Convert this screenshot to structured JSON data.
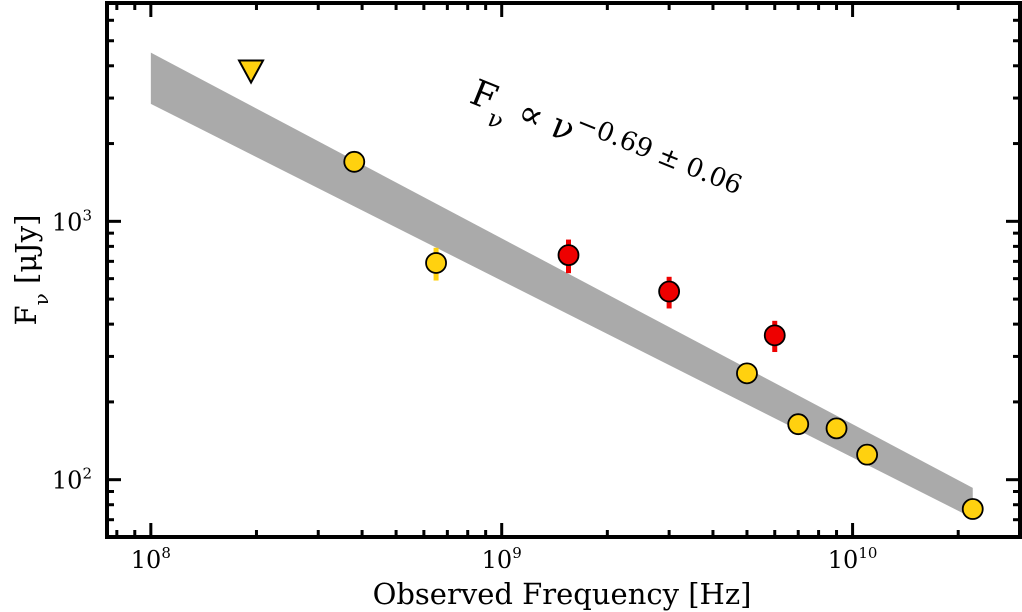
{
  "chart_data": {
    "type": "scatter",
    "xlabel": "Observed Frequency [Hz]",
    "ylabel": "Fν [μJy]",
    "xscale": "log",
    "yscale": "log",
    "xlim": [
      75000000.0,
      30000000000.0
    ],
    "ylim": [
      60,
      7000
    ],
    "x_ticks": [
      {
        "value": 100000000.0,
        "base": "10",
        "exp": "8"
      },
      {
        "value": 1000000000.0,
        "base": "10",
        "exp": "9"
      },
      {
        "value": 10000000000.0,
        "base": "10",
        "exp": "10"
      }
    ],
    "y_ticks": [
      {
        "value": 100,
        "base": "10",
        "exp": "2"
      },
      {
        "value": 1000,
        "base": "10",
        "exp": "3"
      }
    ],
    "annotation": {
      "base": "F",
      "sub": "ν",
      "mid": " ∝ ν",
      "sup": "−0.69 ± 0.06"
    },
    "fit_band": {
      "x": [
        100000000.0,
        22000000000.0
      ],
      "upper": [
        4500,
        93
      ],
      "lower": [
        2850,
        71
      ]
    },
    "colors": {
      "yellow": "#ffd10f",
      "red": "#ee0000",
      "band": "#aaaaaa"
    },
    "series": [
      {
        "color": "yellow",
        "points": [
          {
            "x": 380000000.0,
            "y": 1700,
            "err": 150
          },
          {
            "x": 650000000.0,
            "y": 690,
            "err": 100
          },
          {
            "x": 5000000000.0,
            "y": 258,
            "err": 12
          },
          {
            "x": 7000000000.0,
            "y": 164,
            "err": 10
          },
          {
            "x": 9000000000.0,
            "y": 158,
            "err": 10
          },
          {
            "x": 11000000000.0,
            "y": 125,
            "err": 8
          },
          {
            "x": 22000000000.0,
            "y": 77,
            "err": 6
          }
        ]
      },
      {
        "color": "red",
        "points": [
          {
            "x": 1550000000.0,
            "y": 740,
            "err": 110
          },
          {
            "x": 3000000000.0,
            "y": 535,
            "err": 75
          },
          {
            "x": 6000000000.0,
            "y": 362,
            "err": 50
          }
        ]
      },
      {
        "color": "yellow",
        "marker": "triangle-down",
        "upper_limit": true,
        "points": [
          {
            "x": 193000000.0,
            "y": 3800
          }
        ]
      }
    ]
  }
}
